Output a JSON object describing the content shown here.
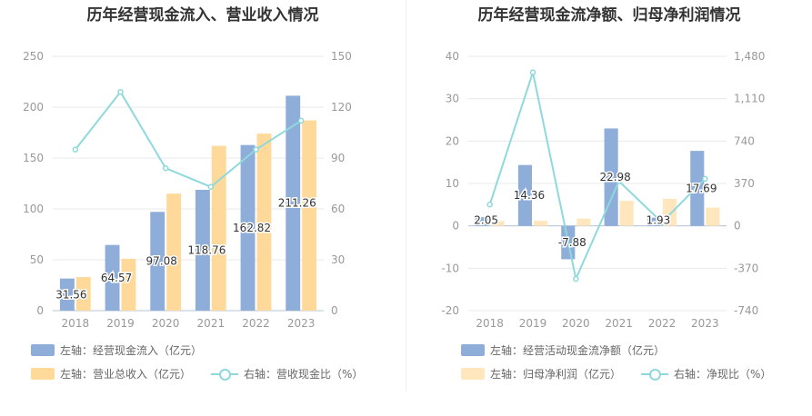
{
  "colors": {
    "bar1": "#8eadd9",
    "bar2": "#ffd99a",
    "line": "#8fd9dd",
    "axis": "#999999",
    "grid": "#e8e8e8"
  },
  "chart_data": [
    {
      "type": "bar",
      "title": "历年经营现金流入、营业收入情况",
      "categories": [
        "2018",
        "2019",
        "2020",
        "2021",
        "2022",
        "2023"
      ],
      "series": [
        {
          "name": "左轴：经营现金流入（亿元）",
          "axis": "left",
          "values": [
            31.56,
            64.57,
            97.08,
            118.76,
            162.82,
            211.26
          ],
          "labels": [
            "31.56",
            "64.57",
            "97.08",
            "118.76",
            "162.82",
            "211.26"
          ]
        },
        {
          "name": "左轴：营业总收入（亿元）",
          "axis": "left",
          "values": [
            33,
            51,
            115,
            162,
            174,
            187
          ]
        },
        {
          "name": "右轴：营收现金比（%）",
          "axis": "right",
          "type": "line",
          "values": [
            95,
            129,
            84,
            73,
            95,
            112
          ]
        }
      ],
      "yleft": {
        "min": 0,
        "max": 250,
        "ticks": [
          "0",
          "50",
          "100",
          "150",
          "200",
          "250"
        ]
      },
      "yright": {
        "min": 0,
        "max": 150,
        "ticks": [
          "0",
          "30",
          "60",
          "90",
          "120",
          "150"
        ]
      }
    },
    {
      "type": "bar",
      "title": "历年经营现金流净额、归母净利润情况",
      "categories": [
        "2018",
        "2019",
        "2020",
        "2021",
        "2022",
        "2023"
      ],
      "series": [
        {
          "name": "左轴：经营活动现金流净额（亿元）",
          "axis": "left",
          "values": [
            2.05,
            14.36,
            -7.88,
            22.98,
            1.93,
            17.69
          ],
          "labels": [
            "2.05",
            "14.36",
            "-7.88",
            "22.98",
            "1.93",
            "17.69"
          ]
        },
        {
          "name": "左轴：归母净利润（亿元）",
          "axis": "left",
          "values": [
            1.1,
            1.2,
            1.7,
            5.9,
            6.4,
            4.3
          ]
        },
        {
          "name": "右轴：净现比（%）",
          "axis": "right",
          "type": "line",
          "values": [
            186,
            1340,
            -463,
            390,
            30,
            411
          ]
        }
      ],
      "yleft": {
        "min": -20,
        "max": 40,
        "ticks": [
          "-20",
          "-10",
          "0",
          "10",
          "20",
          "30",
          "40"
        ]
      },
      "yright": {
        "min": -740,
        "max": 1480,
        "ticks": [
          "-740",
          "-370",
          "0",
          "370",
          "740",
          "1,110",
          "1,480"
        ]
      }
    }
  ]
}
